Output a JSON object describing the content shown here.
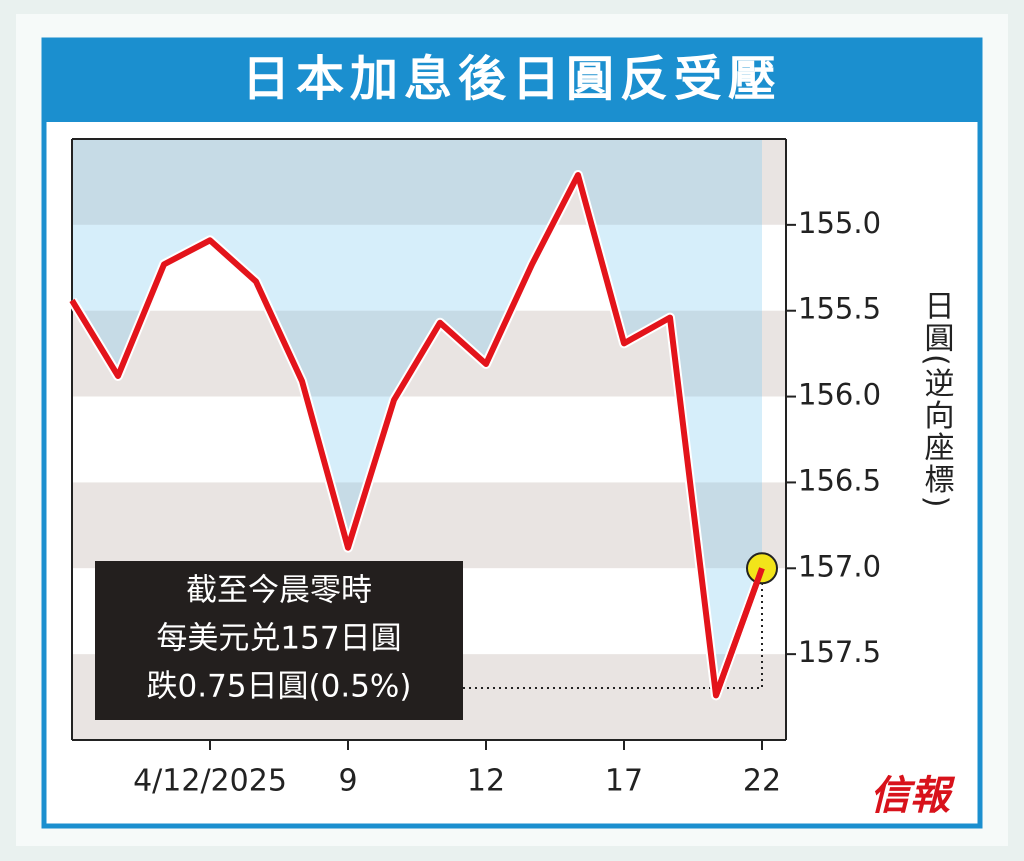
{
  "chart_data": {
    "type": "line",
    "title": "日本加息後日圓反受壓",
    "categories": [
      null,
      null,
      null,
      "4/12/2025",
      null,
      null,
      "9",
      null,
      null,
      "12",
      null,
      null,
      "17",
      null,
      null,
      "22"
    ],
    "series": [
      {
        "color": "#e3141b",
        "values": [
          155.44,
          155.88,
          155.23,
          155.09,
          155.33,
          155.91,
          156.88,
          156.02,
          155.57,
          155.81,
          155.23,
          154.71,
          155.69,
          155.54,
          157.74,
          157.0
        ]
      }
    ],
    "y_label": "日圓(逆向座標)",
    "y_inverted": true,
    "ylim": [
      154.5,
      158.0
    ],
    "yticks": [
      {
        "value": 155,
        "label": "155.0"
      },
      155.5,
      {
        "value": 156,
        "label": "156.0"
      },
      156.5,
      {
        "value": 157,
        "label": "157.0"
      },
      157.5
    ],
    "annotation": [
      "截至今晨零時",
      "每美元兑157日圓",
      "跌0.75日圓(0.5%)"
    ],
    "source": "信報"
  }
}
